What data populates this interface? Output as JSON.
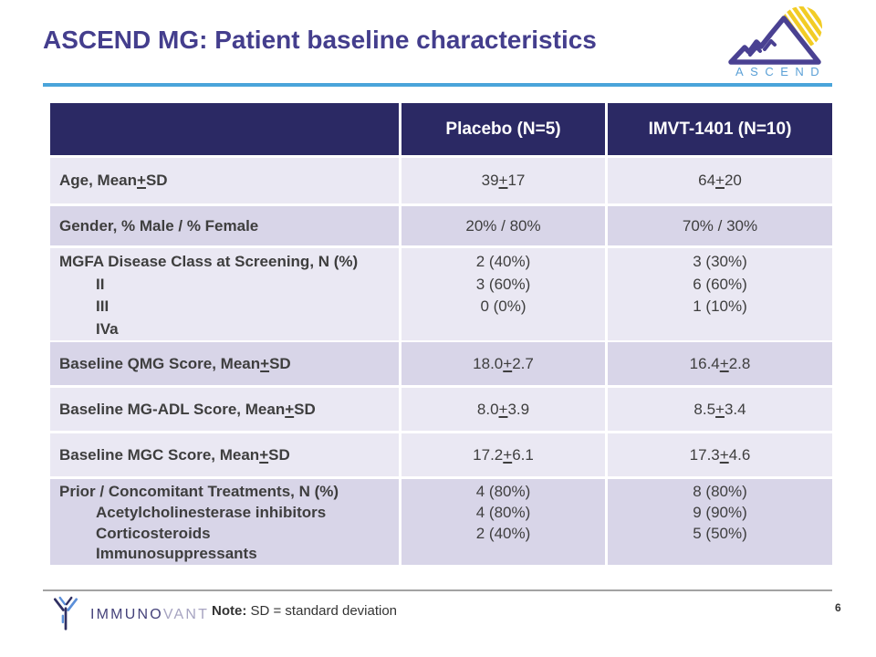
{
  "slide": {
    "title": "ASCEND MG: Patient baseline characteristics",
    "page_number": "6",
    "note_label": "Note:",
    "note_text": "SD = standard deviation"
  },
  "logos": {
    "ascend": {
      "wordmark": "ASCEND"
    },
    "immunovant": {
      "wordmark_part1": "IMMUNO",
      "wordmark_part2": "VANT"
    }
  },
  "colors": {
    "title_text": "#443e8d",
    "accent_line_blue": "#4aa4da",
    "table_header_bg": "#2b2964",
    "row_light": "#eae8f3",
    "row_dark": "#d8d5e8",
    "body_text": "#3e3e3e",
    "ascend_letters_blue": "#5ba0d6",
    "mountain_purple": "#4a4192",
    "sun_yellow": "#f2cc25",
    "immunovant_dark": "#45427a",
    "immunovant_light": "#a7a4c1"
  },
  "table": {
    "columns": [
      "",
      "Placebo (N=5)",
      "IMVT-1401 (N=10)"
    ],
    "rows": [
      {
        "label": "Age, Mean ± SD",
        "placebo": "39 ± 17",
        "imvt": "64 ± 20"
      },
      {
        "label": "Gender, % Male / % Female",
        "placebo": "20% / 80%",
        "imvt": "70% / 30%"
      },
      {
        "label": "MGFA Disease Class at Screening, N (%)",
        "sub": [
          {
            "label": "II",
            "placebo": "2 (40%)",
            "imvt": "3 (30%)"
          },
          {
            "label": "III",
            "placebo": "3 (60%)",
            "imvt": "6 (60%)"
          },
          {
            "label": "IVa",
            "placebo": "0 (0%)",
            "imvt": "1 (10%)"
          }
        ]
      },
      {
        "label": "Baseline QMG Score, Mean ± SD",
        "placebo": "18.0 ± 2.7",
        "imvt": "16.4 ± 2.8"
      },
      {
        "label": "Baseline MG-ADL Score, Mean ± SD",
        "placebo": "8.0 ± 3.9",
        "imvt": "8.5 ± 3.4"
      },
      {
        "label": "Baseline MGC Score, Mean ± SD",
        "placebo": "17.2 ± 6.1",
        "imvt": "17.3 ± 4.6"
      },
      {
        "label": "Prior / Concomitant Treatments, N (%)",
        "sub": [
          {
            "label": "Acetylcholinesterase inhibitors",
            "placebo": "4 (80%)",
            "imvt": "8 (80%)"
          },
          {
            "label": "Corticosteroids",
            "placebo": "4 (80%)",
            "imvt": "9 (90%)"
          },
          {
            "label": "Immunosuppressants",
            "placebo": "2 (40%)",
            "imvt": "5 (50%)"
          }
        ]
      }
    ]
  }
}
